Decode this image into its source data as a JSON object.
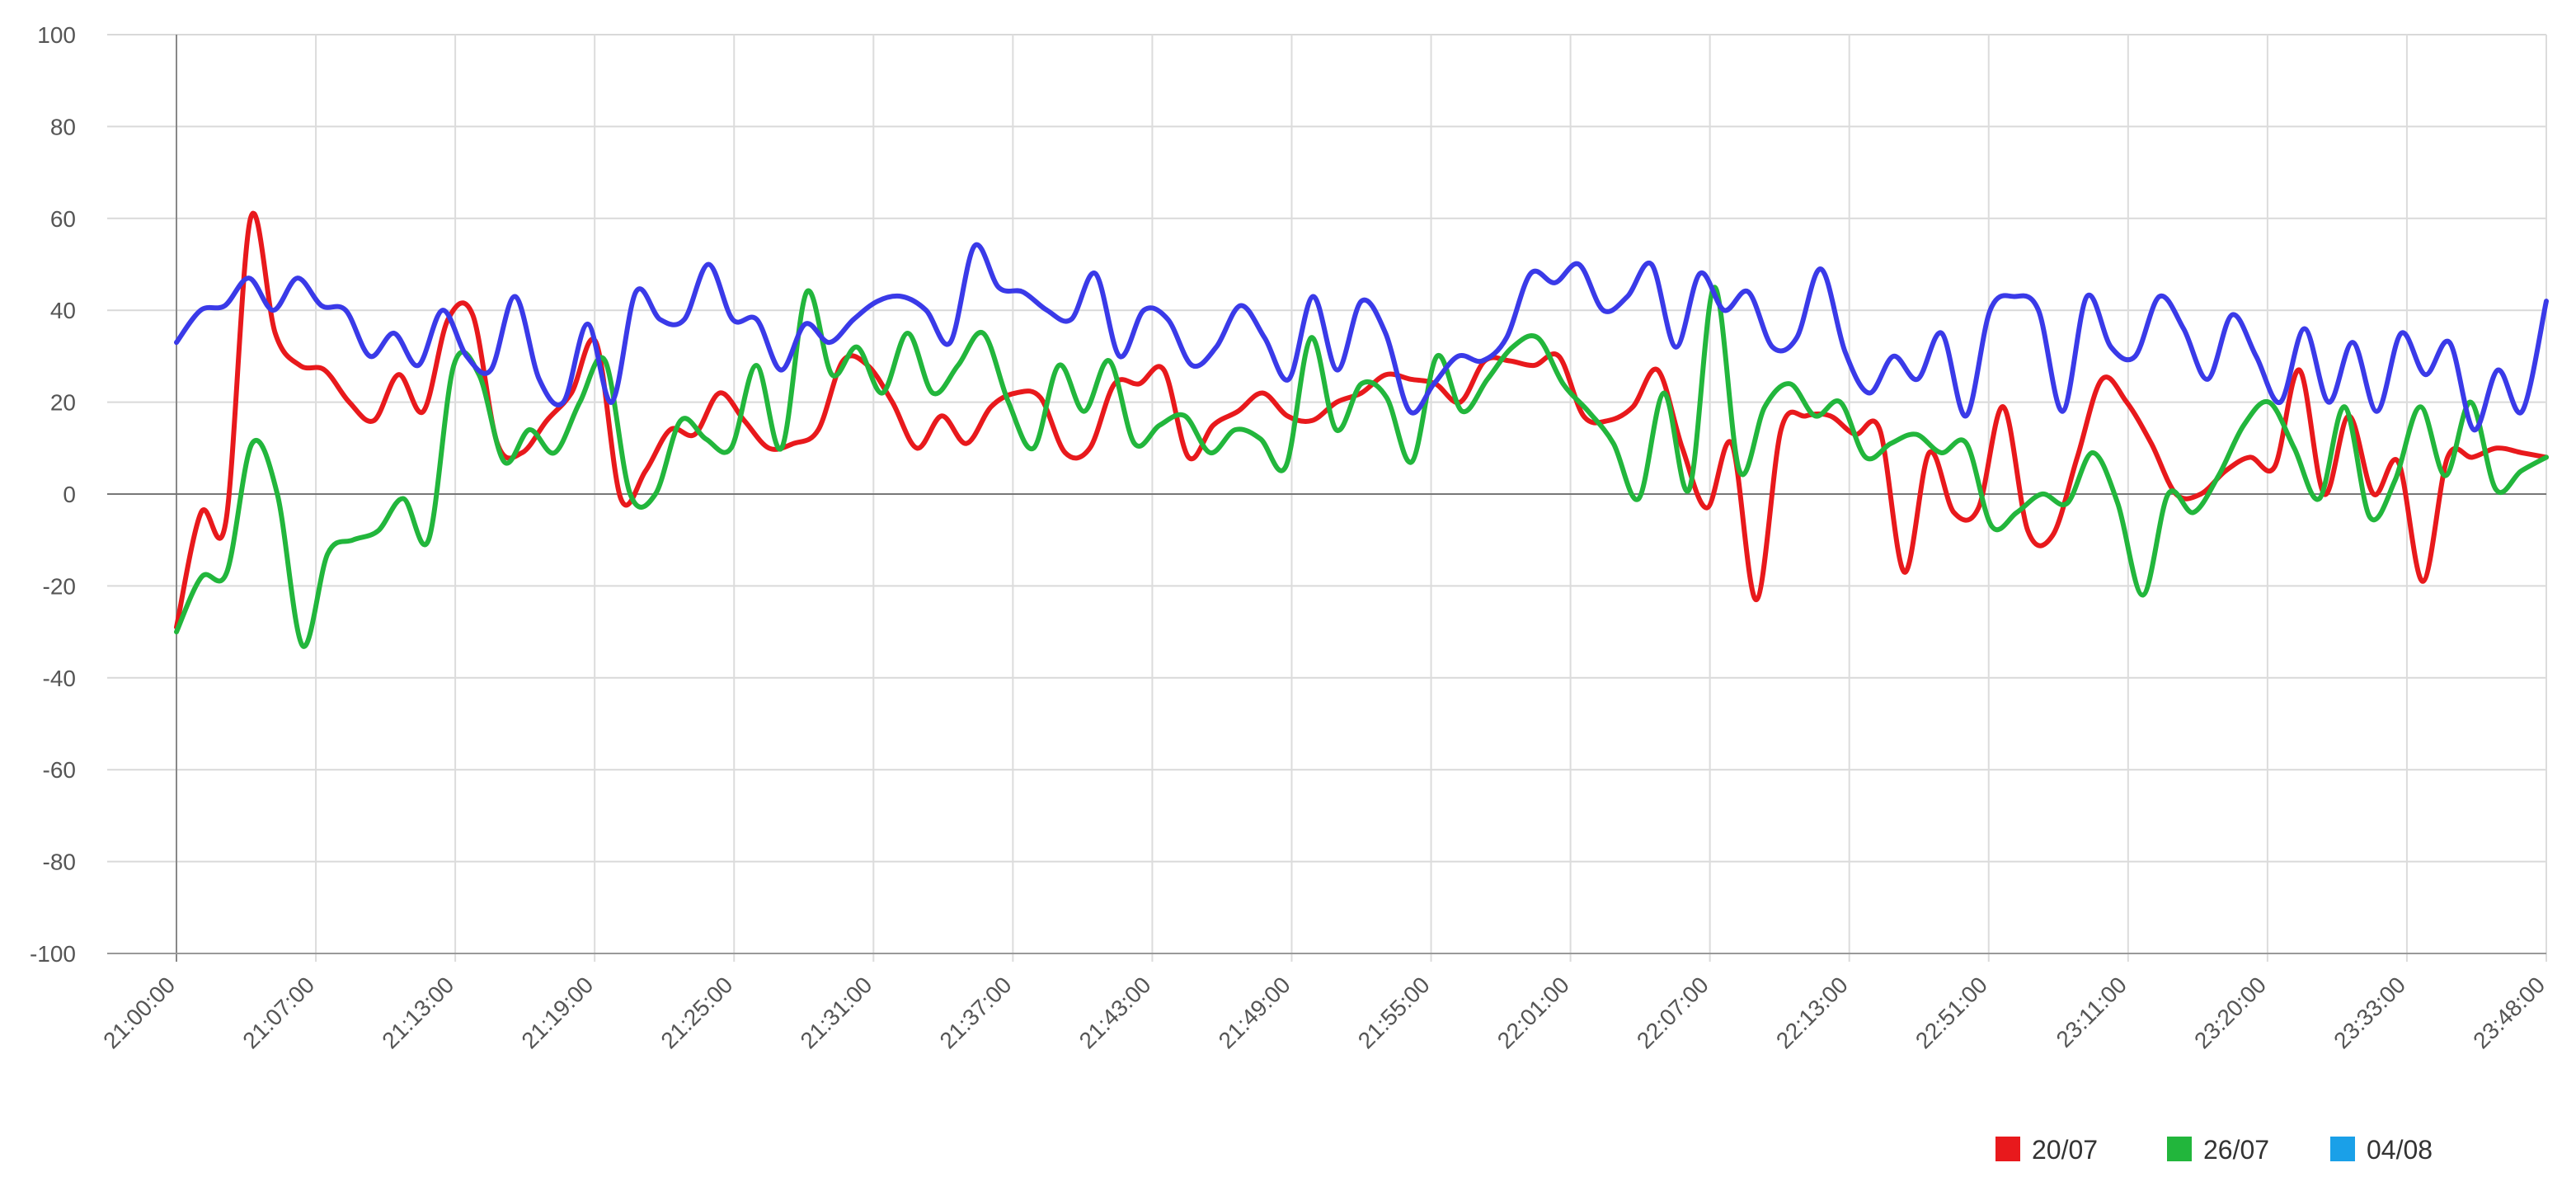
{
  "chart_data": {
    "type": "line",
    "title": "",
    "xlabel": "",
    "ylabel": "",
    "ylim": [
      -100,
      100
    ],
    "yticks": [
      100,
      80,
      60,
      40,
      20,
      0,
      -20,
      -40,
      -60,
      -80,
      -100
    ],
    "x_tick_labels": [
      "21:00:00",
      "21:07:00",
      "21:13:00",
      "21:19:00",
      "21:25:00",
      "21:31:00",
      "21:37:00",
      "21:43:00",
      "21:49:00",
      "21:55:00",
      "22:01:00",
      "22:07:00",
      "22:13:00",
      "22:51:00",
      "23:11:00",
      "23:20:00",
      "23:33:00",
      "23:48:00"
    ],
    "grid": true,
    "legend_position": "bottom-right",
    "series": [
      {
        "name": "20/07",
        "color": "#e8191c",
        "values": [
          -29,
          -4,
          -6,
          60,
          35,
          28,
          27,
          20,
          16,
          26,
          18,
          38,
          39,
          11,
          9,
          16,
          22,
          33,
          -1,
          5,
          14,
          13,
          22,
          16,
          10,
          11,
          14,
          29,
          28,
          20,
          10,
          17,
          11,
          19,
          22,
          21,
          9,
          10,
          24,
          24,
          27,
          8,
          15,
          18,
          22,
          17,
          16,
          20,
          22,
          26,
          25,
          24,
          20,
          29,
          29,
          28,
          30,
          17,
          16,
          19,
          27,
          10,
          -3,
          11,
          -23,
          14,
          17,
          17,
          13,
          14,
          -17,
          9,
          -4,
          -3,
          19,
          -8,
          -9,
          8,
          25,
          20,
          11,
          0,
          0,
          5,
          8,
          6,
          27,
          0,
          17,
          0,
          7,
          -19,
          8,
          8,
          10,
          9,
          8
        ]
      },
      {
        "name": "26/07",
        "color": "#22b63c",
        "values": [
          -30,
          -18,
          -17,
          11,
          0,
          -33,
          -13,
          -10,
          -8,
          -1,
          -10,
          28,
          26,
          7,
          14,
          9,
          20,
          29,
          0,
          0,
          16,
          12,
          10,
          28,
          10,
          44,
          26,
          32,
          22,
          35,
          22,
          28,
          35,
          20,
          10,
          28,
          18,
          29,
          11,
          15,
          17,
          9,
          14,
          12,
          6,
          34,
          14,
          24,
          21,
          7,
          30,
          18,
          25,
          32,
          34,
          24,
          18,
          11,
          -1,
          22,
          1,
          45,
          5,
          19,
          24,
          17,
          20,
          8,
          11,
          13,
          9,
          11,
          -7,
          -4,
          0,
          -2,
          9,
          -2,
          -22,
          0,
          -4,
          4,
          15,
          20,
          10,
          -1,
          19,
          -5,
          3,
          19,
          4,
          20,
          1,
          5,
          8
        ]
      },
      {
        "name": "04/08",
        "color": "#3a3ae8",
        "values": [
          33,
          40,
          41,
          47,
          40,
          47,
          41,
          40,
          30,
          35,
          28,
          40,
          30,
          27,
          43,
          25,
          20,
          37,
          20,
          44,
          38,
          38,
          50,
          38,
          38,
          27,
          37,
          33,
          38,
          42,
          43,
          40,
          33,
          54,
          45,
          44,
          40,
          38,
          48,
          30,
          40,
          38,
          28,
          32,
          41,
          34,
          25,
          43,
          27,
          42,
          35,
          18,
          24,
          30,
          29,
          34,
          48,
          46,
          50,
          40,
          43,
          50,
          32,
          48,
          40,
          44,
          32,
          34,
          49,
          31,
          22,
          30,
          25,
          35,
          17,
          40,
          43,
          40,
          18,
          43,
          32,
          30,
          43,
          36,
          25,
          39,
          30,
          20,
          36,
          20,
          33,
          18,
          35,
          26,
          33,
          14,
          27,
          18,
          42
        ]
      }
    ]
  }
}
